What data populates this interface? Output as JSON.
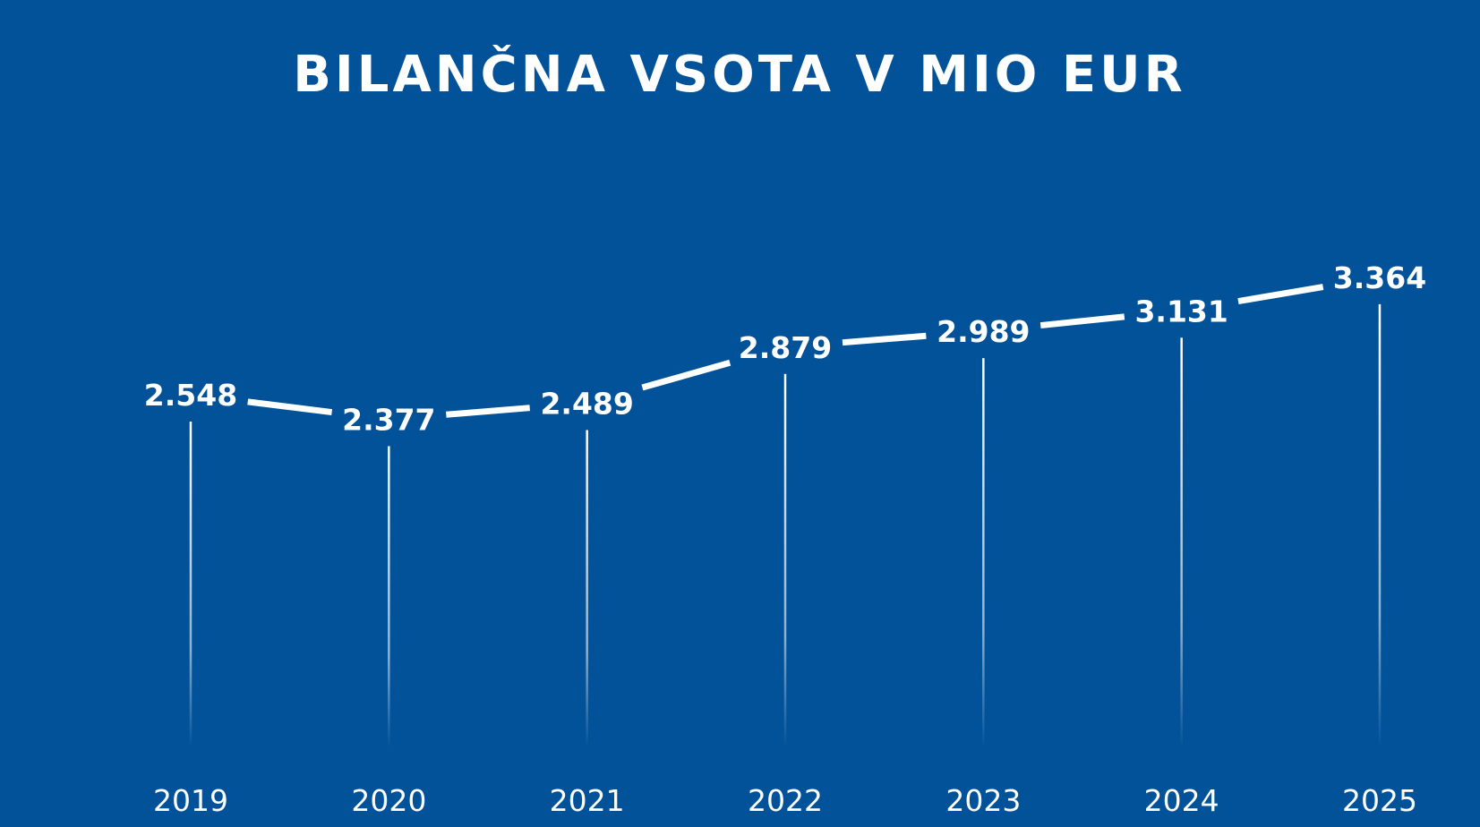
{
  "colors": {
    "background": "#02529A",
    "line": "#FFFFFF",
    "text": "#FFFFFF",
    "drop_line": "#FFFFFF"
  },
  "chart_data": {
    "type": "line",
    "title": "BILANČNA VSOTA V MIO EUR",
    "xlabel": "",
    "ylabel": "",
    "categories": [
      "2019",
      "2020",
      "2021",
      "2022",
      "2023",
      "2024",
      "2025"
    ],
    "values": [
      2548,
      2377,
      2489,
      2879,
      2989,
      3131,
      3364
    ],
    "value_labels": [
      "2.548",
      "2.377",
      "2.489",
      "2.879",
      "2.989",
      "3.131",
      "3.364"
    ],
    "grid": false,
    "legend": "none"
  }
}
